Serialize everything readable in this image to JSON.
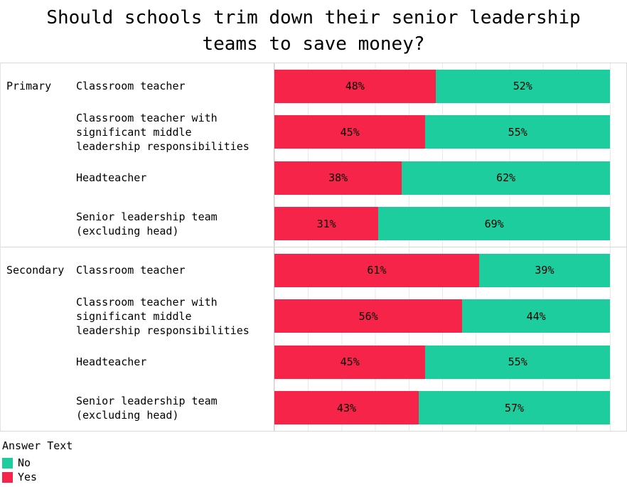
{
  "title_lines": [
    "Should schools trim down their senior leadership",
    "teams to save money?"
  ],
  "legend": {
    "title": "Answer Text",
    "items": [
      {
        "label": "No",
        "color": "#1ecd9d"
      },
      {
        "label": "Yes",
        "color": "#f62449"
      }
    ]
  },
  "colors": {
    "yes": "#f62449",
    "no": "#1ecd9d",
    "gridline": "#e9e9e9",
    "border": "#d9d9d9"
  },
  "chart_data": {
    "type": "bar",
    "subtype": "stacked-100-horizontal",
    "title": "Should schools trim down their senior leadership teams to save money?",
    "unit": "%",
    "xlim": [
      0,
      100
    ],
    "grid": true,
    "legend_position": "bottom-left",
    "legend_title": "Answer Text",
    "series": [
      "Yes",
      "No"
    ],
    "groups": [
      {
        "name": "Primary",
        "rows": [
          {
            "category": "Classroom teacher",
            "yes": 48,
            "no": 52
          },
          {
            "category": "Classroom teacher with significant middle leadership responsibilities",
            "yes": 45,
            "no": 55
          },
          {
            "category": "Headteacher",
            "yes": 38,
            "no": 62
          },
          {
            "category": "Senior leadership team (excluding head)",
            "yes": 31,
            "no": 69
          }
        ]
      },
      {
        "name": "Secondary",
        "rows": [
          {
            "category": "Classroom teacher",
            "yes": 61,
            "no": 39
          },
          {
            "category": "Classroom teacher with significant middle leadership responsibilities",
            "yes": 56,
            "no": 44
          },
          {
            "category": "Headteacher",
            "yes": 45,
            "no": 55
          },
          {
            "category": "Senior leadership team (excluding head)",
            "yes": 43,
            "no": 57
          }
        ]
      }
    ]
  }
}
